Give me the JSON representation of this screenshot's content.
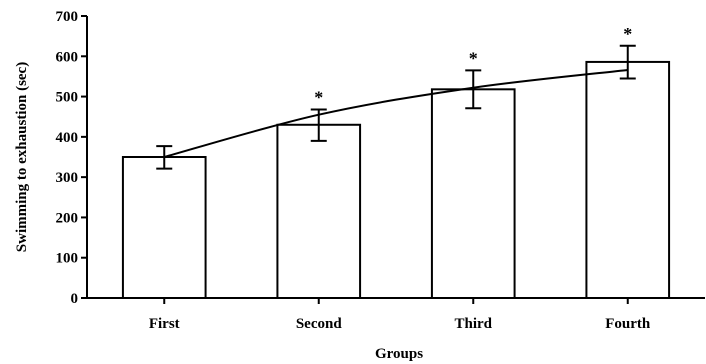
{
  "chart_data": {
    "type": "bar",
    "title": "",
    "xlabel": "Groups",
    "ylabel": "Swimming to exhaustion (sec)",
    "categories": [
      "First",
      "Second",
      "Third",
      "Fourth"
    ],
    "values": [
      350,
      430,
      518,
      586
    ],
    "error_upper": [
      377,
      468,
      565,
      626
    ],
    "error_lower": [
      321,
      390,
      471,
      545
    ],
    "significance": [
      "",
      "*",
      "*",
      "*"
    ],
    "trend_line": [
      {
        "x": "First",
        "y": 350
      },
      {
        "x": "Second",
        "y": 455
      },
      {
        "x": "Third",
        "y": 522
      },
      {
        "x": "Fourth",
        "y": 566
      }
    ],
    "ylim": [
      0,
      700
    ],
    "yticks": [
      0,
      100,
      200,
      300,
      400,
      500,
      600,
      700
    ],
    "grid": false,
    "legend": "none",
    "colors": {
      "bar_fill": "#ffffff",
      "stroke": "#000000"
    }
  }
}
